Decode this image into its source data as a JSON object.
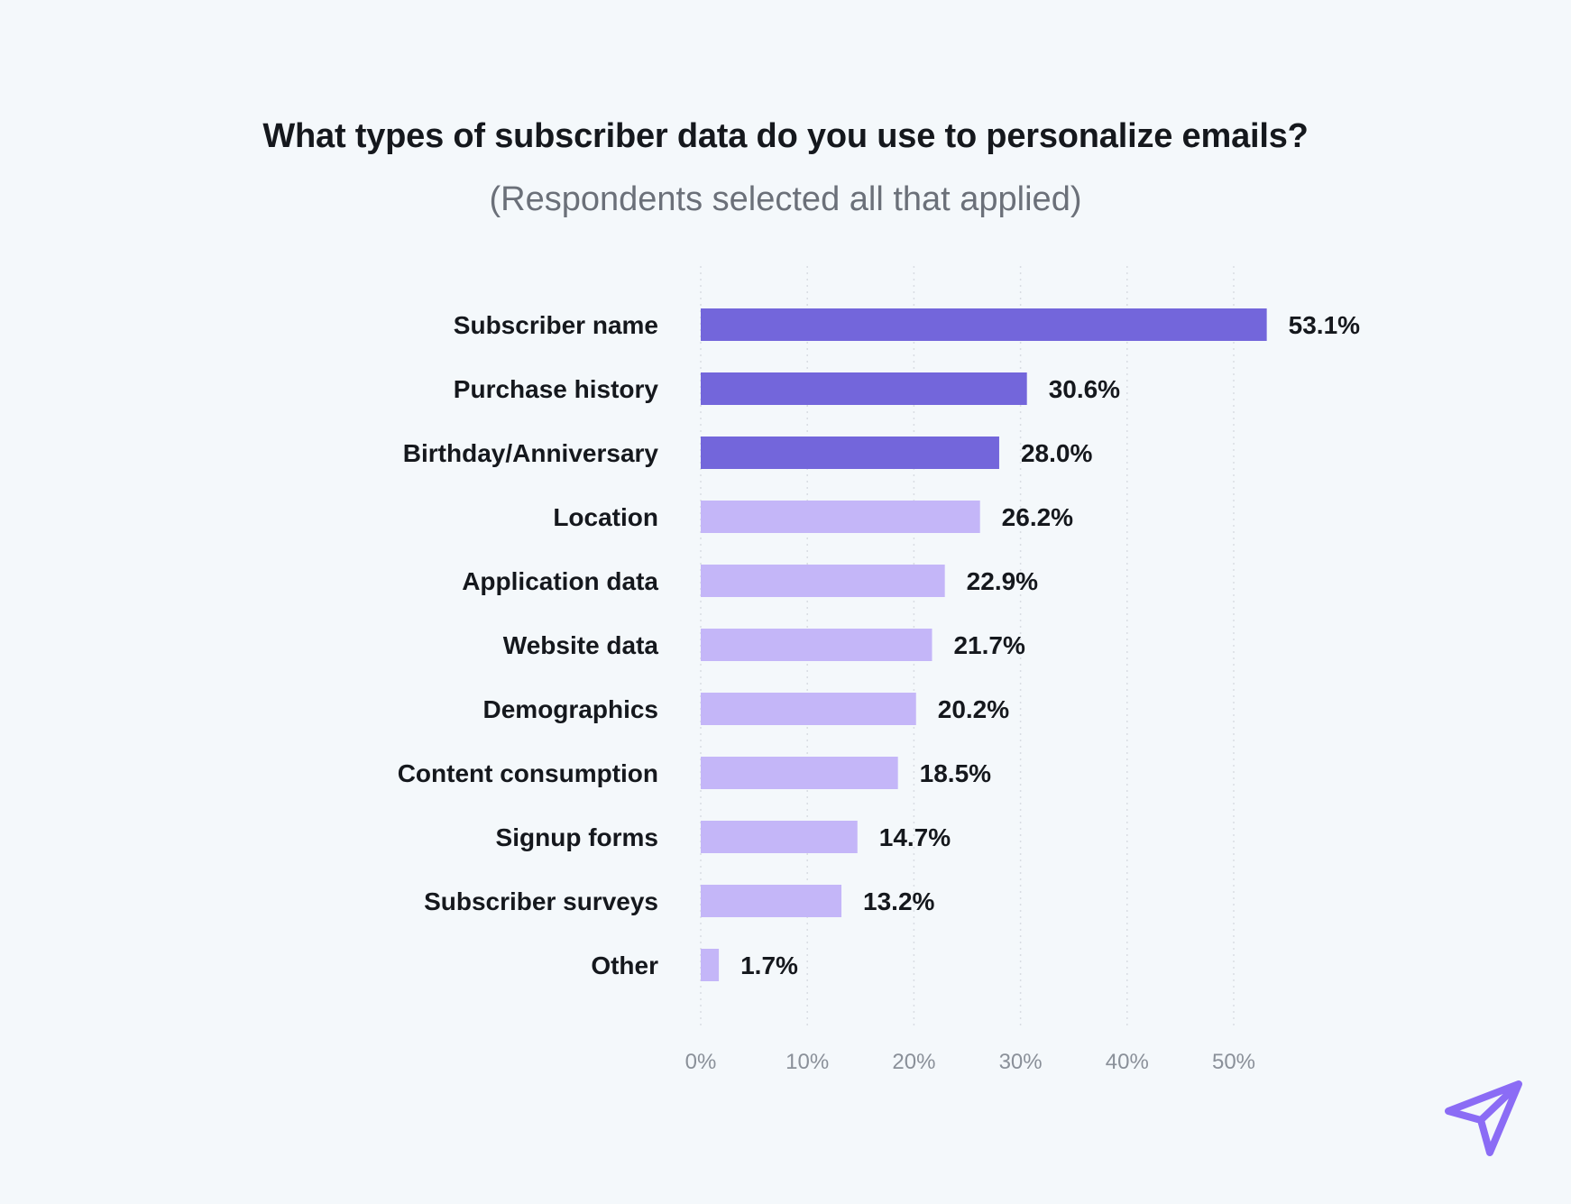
{
  "header": {
    "title": "What types of subscriber data do you use to personalize emails?",
    "subtitle": "(Respondents selected all that applied)"
  },
  "colors": {
    "highlight": "#7366db",
    "default": "#c4b6f8",
    "logo": "#8b6cf5",
    "background": "#f4f8fb"
  },
  "logo": {
    "icon": "paper-plane-icon"
  },
  "chart_data": {
    "type": "bar",
    "orientation": "horizontal",
    "title": "What types of subscriber data do you use to personalize emails?",
    "subtitle": "(Respondents selected all that applied)",
    "xlabel": "",
    "ylabel": "",
    "xlim": [
      0,
      60
    ],
    "grid": true,
    "categories": [
      "Subscriber name",
      "Purchase history",
      "Birthday/Anniversary",
      "Location",
      "Application data",
      "Website data",
      "Demographics",
      "Content consumption",
      "Signup forms",
      "Subscriber surveys",
      "Other"
    ],
    "values": [
      53.1,
      30.6,
      28.0,
      26.2,
      22.9,
      21.7,
      20.2,
      18.5,
      14.7,
      13.2,
      1.7
    ],
    "value_labels": [
      "53.1%",
      "30.6%",
      "28.0%",
      "26.2%",
      "22.9%",
      "21.7%",
      "20.2%",
      "18.5%",
      "14.7%",
      "13.2%",
      "1.7%"
    ],
    "highlighted": [
      true,
      true,
      true,
      false,
      false,
      false,
      false,
      false,
      false,
      false,
      false
    ],
    "ticks": [
      0,
      10,
      20,
      30,
      40,
      50
    ],
    "tick_labels": [
      "0%",
      "10%",
      "20%",
      "30%",
      "40%",
      "50%"
    ]
  }
}
